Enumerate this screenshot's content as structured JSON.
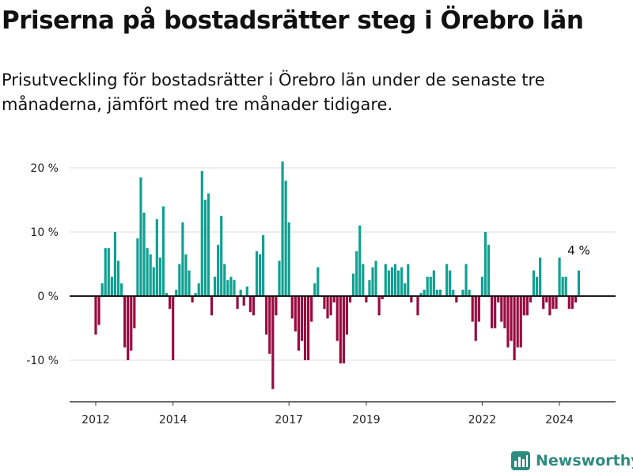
{
  "title": "Priserna på bostadsrätter steg i Örebro län",
  "subtitle": "Prisutveckling för bostadsrätter i Örebro län under de senaste tre månaderna, jämfört med tre månader tidigare.",
  "brand": {
    "name": "Newsworthy",
    "icon": "bar-chart-logo-icon"
  },
  "colors": {
    "positive": "#0fa092",
    "negative": "#980a3f",
    "grid": "#dddddd",
    "axis": "#333333",
    "brand": "#2e8b7f"
  },
  "chart_data": {
    "type": "bar",
    "unit": "%",
    "x_start": "2012-01",
    "frequency": "monthly",
    "ylim": [
      -16.5,
      21
    ],
    "y_ticks": [
      {
        "value": 20,
        "label": "20 %"
      },
      {
        "value": 10,
        "label": "10 %"
      },
      {
        "value": 0,
        "label": "0 %"
      },
      {
        "value": -10,
        "label": "-10 %"
      }
    ],
    "x_ticks": [
      {
        "value": "2012-01",
        "label": "2012"
      },
      {
        "value": "2014-01",
        "label": "2014"
      },
      {
        "value": "2017-01",
        "label": "2017"
      },
      {
        "value": "2019-01",
        "label": "2019"
      },
      {
        "value": "2022-01",
        "label": "2022"
      },
      {
        "value": "2024-01",
        "label": "2024"
      }
    ],
    "values": [
      -6,
      -4.5,
      2,
      7.5,
      7.5,
      3,
      10,
      5.5,
      2,
      -8,
      -10,
      -8.5,
      -5,
      9,
      18.5,
      13,
      7.5,
      6.5,
      4.5,
      12,
      6,
      14,
      0.5,
      -2,
      -10,
      1,
      5,
      11.5,
      6.5,
      4,
      -1,
      0.5,
      2,
      19.5,
      15,
      16,
      -3,
      3,
      8,
      12.5,
      5,
      2.5,
      3,
      2.5,
      -2,
      1,
      -1.5,
      1.5,
      -2.5,
      -3,
      7,
      6.5,
      9.5,
      -6,
      -9,
      -14.5,
      -3,
      5.5,
      21,
      18,
      11.5,
      -3.5,
      -5.5,
      -8.5,
      -7,
      -10,
      -10,
      -4,
      2,
      4.5,
      0,
      -2,
      -3.5,
      -3,
      -1,
      -7,
      -10.5,
      -10.5,
      -6,
      -1,
      3.5,
      7,
      11,
      5,
      -1,
      2.5,
      4.5,
      5.5,
      -3,
      -0.5,
      5,
      4,
      4.5,
      5,
      4,
      4.5,
      2,
      5,
      -1,
      0,
      -3,
      0.5,
      1,
      3,
      3,
      4,
      1,
      1,
      0,
      5,
      4,
      1,
      -1,
      0,
      1,
      5,
      1,
      -4,
      -7,
      -4,
      3,
      10,
      8,
      -5,
      -5,
      -1,
      -4,
      -5,
      -8,
      -7,
      -10,
      -8,
      -8,
      -3,
      -3,
      -1,
      4,
      3,
      6,
      -2,
      -1,
      -3,
      -2,
      -2,
      6,
      3,
      3,
      -2,
      -2,
      -1,
      4
    ],
    "annotations": [
      {
        "text": "4 %",
        "at": "last"
      }
    ]
  }
}
